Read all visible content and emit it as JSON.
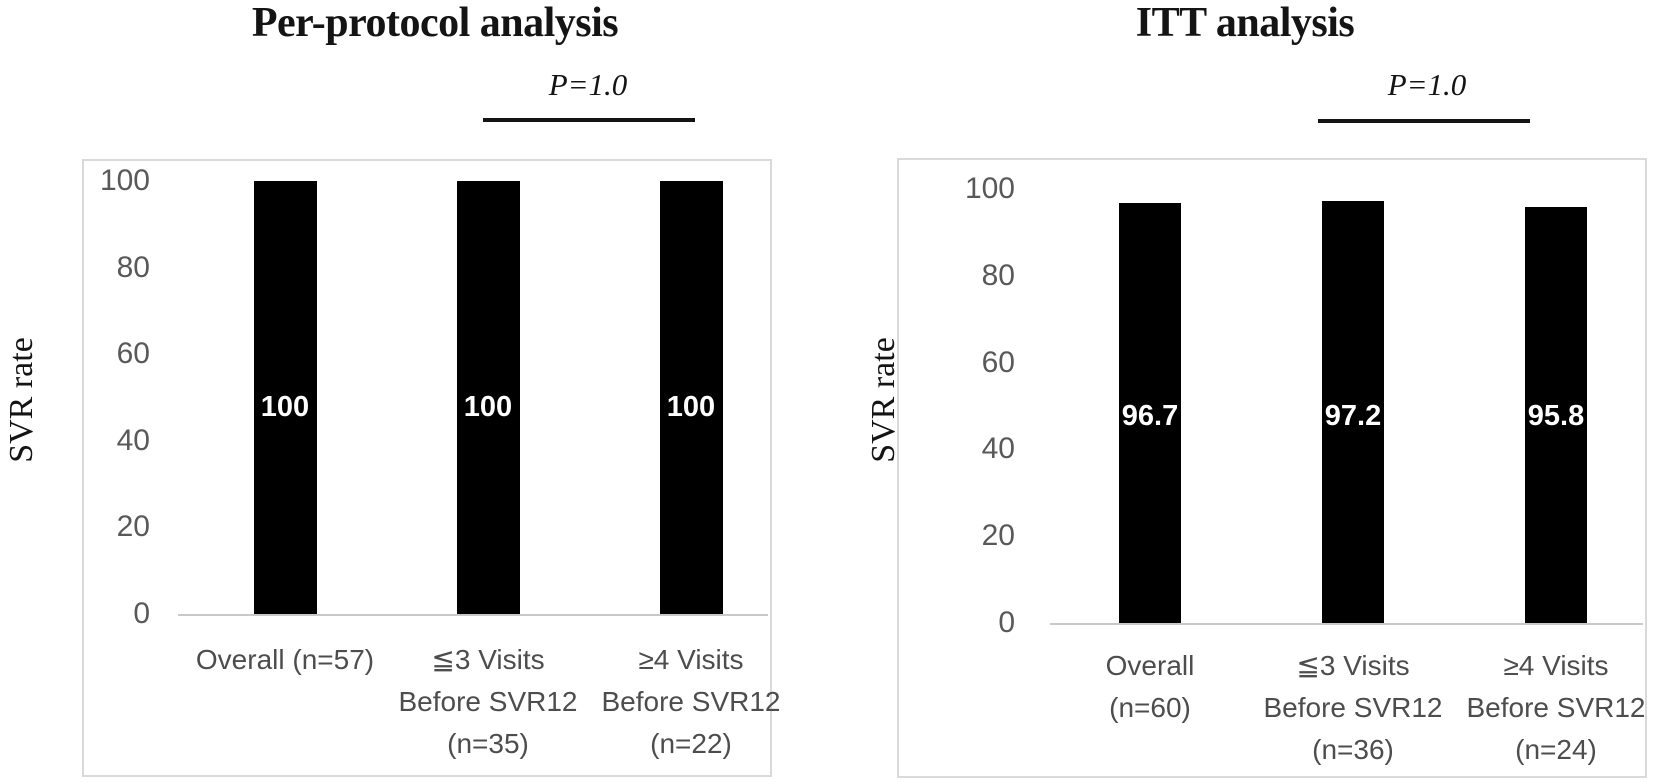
{
  "figure": {
    "background": "#ffffff",
    "colors": {
      "bar": "#000000",
      "bar_value_label": "#ffffff",
      "axis_text": "#595959",
      "category_text": "#4d4d4d",
      "plot_border": "#d9d9d9",
      "axis_line": "#c9c9c9",
      "title_text": "#141414",
      "significance_line": "#141414"
    }
  },
  "chart_data": [
    {
      "type": "bar",
      "title": "Per-protocol analysis",
      "p_value_label": "P=1.0",
      "ylabel": "SVR rate",
      "ylim": [
        0,
        100
      ],
      "grid": false,
      "legend": "none",
      "y_ticks": [
        100,
        80,
        60,
        40,
        20,
        0
      ],
      "categories": [
        [
          "Overall (n=57)"
        ],
        [
          "≦3  Visits",
          "Before SVR12",
          "(n=35)"
        ],
        [
          "≥4 Visits",
          "Before SVR12",
          "(n=22)"
        ]
      ],
      "values": [
        100,
        100,
        100
      ],
      "value_labels": [
        "100",
        "100",
        "100"
      ]
    },
    {
      "type": "bar",
      "title": "ITT analysis",
      "p_value_label": "P=1.0",
      "ylabel": "SVR rate",
      "ylim": [
        0,
        100
      ],
      "grid": false,
      "legend": "none",
      "y_ticks": [
        100,
        80,
        60,
        40,
        20,
        0
      ],
      "categories": [
        [
          "Overall",
          "(n=60)"
        ],
        [
          "≦3  Visits",
          "Before SVR12",
          "(n=36)"
        ],
        [
          "≥4 Visits",
          "Before SVR12",
          "(n=24)"
        ]
      ],
      "values": [
        96.7,
        97.2,
        95.8
      ],
      "value_labels": [
        "96.7",
        "97.2",
        "95.8"
      ]
    }
  ]
}
